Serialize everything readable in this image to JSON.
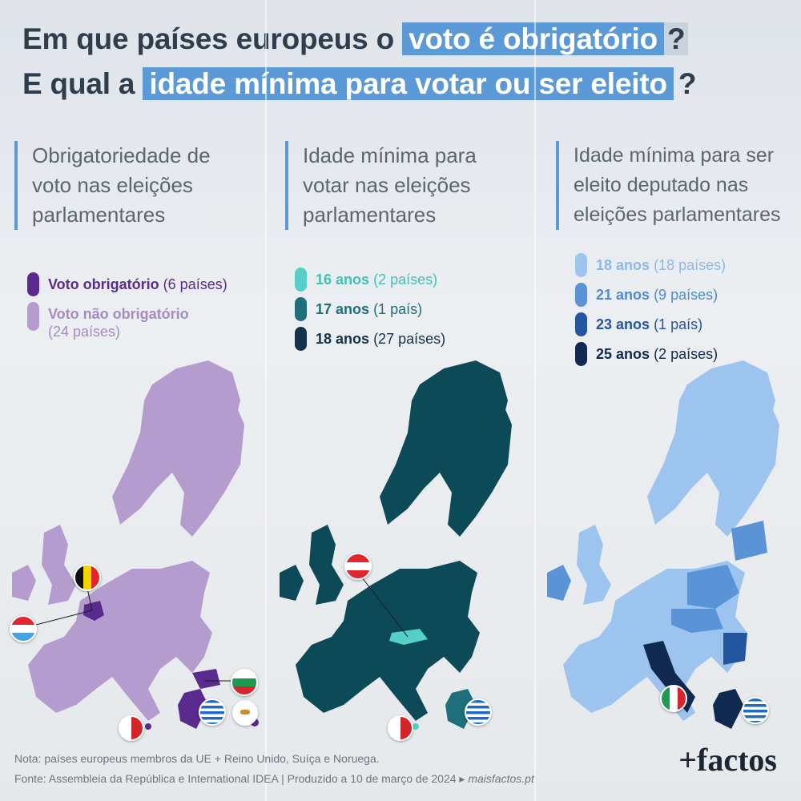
{
  "title": {
    "line1_pre": "Em que países europeus o",
    "line1_hl": "voto é obrigatório",
    "line1_post": "?",
    "line2_pre": "E qual a",
    "line2_hl": "idade mínima para votar ou ser eleito",
    "line2_post": "?"
  },
  "columns": [
    {
      "heading": [
        "Obrigatoriedade de",
        "voto nas eleições",
        "parlamentares"
      ],
      "legend": [
        {
          "label": "Voto obrigatório",
          "count": "(6 países)",
          "color": "#5b2a8f"
        },
        {
          "label": "Voto não obrigatório",
          "count": "(24 países)",
          "color": "#b59ccf"
        }
      ]
    },
    {
      "heading": [
        "Idade mínima para",
        "votar nas eleições",
        "parlamentares"
      ],
      "legend": [
        {
          "label": "16 anos",
          "count": "(2 países)",
          "color": "#55cfc7"
        },
        {
          "label": "17 anos",
          "count": "(1 país)",
          "color": "#1f6f7b"
        },
        {
          "label": "18 anos",
          "count": "(27 países)",
          "color": "#14314a"
        }
      ]
    },
    {
      "heading": [
        "Idade mínima para ser",
        "eleito deputado nas",
        "eleições parlamentares"
      ],
      "legend": [
        {
          "label": "18 anos",
          "count": "(18 países)",
          "color": "#9cc4ee"
        },
        {
          "label": "21 anos",
          "count": "(9 países)",
          "color": "#5b94d6"
        },
        {
          "label": "23 anos",
          "count": "(1 país)",
          "color": "#2456a0"
        },
        {
          "label": "25 anos",
          "count": "(2 países)",
          "color": "#102a4f"
        }
      ]
    }
  ],
  "map_colors": {
    "compulsory_base": "#b59ccf",
    "compulsory_highlight": "#5b2a8f",
    "vote_age_base": "#0c4a57",
    "vote_age_16": "#55cfc7",
    "elected_base": "#9cc4ee",
    "elected_21": "#5b94d6",
    "elected_23": "#2456a0",
    "elected_25": "#102a4f"
  },
  "footer": {
    "note": "Nota: países europeus membros da UE + Reino Unido, Suíça e Noruega.",
    "source": "Fonte: Assembleia da República e International IDEA  |  Produzido a 10 de março de 2024 ▸",
    "site": "maisfactos.pt"
  },
  "brand": "+factos"
}
